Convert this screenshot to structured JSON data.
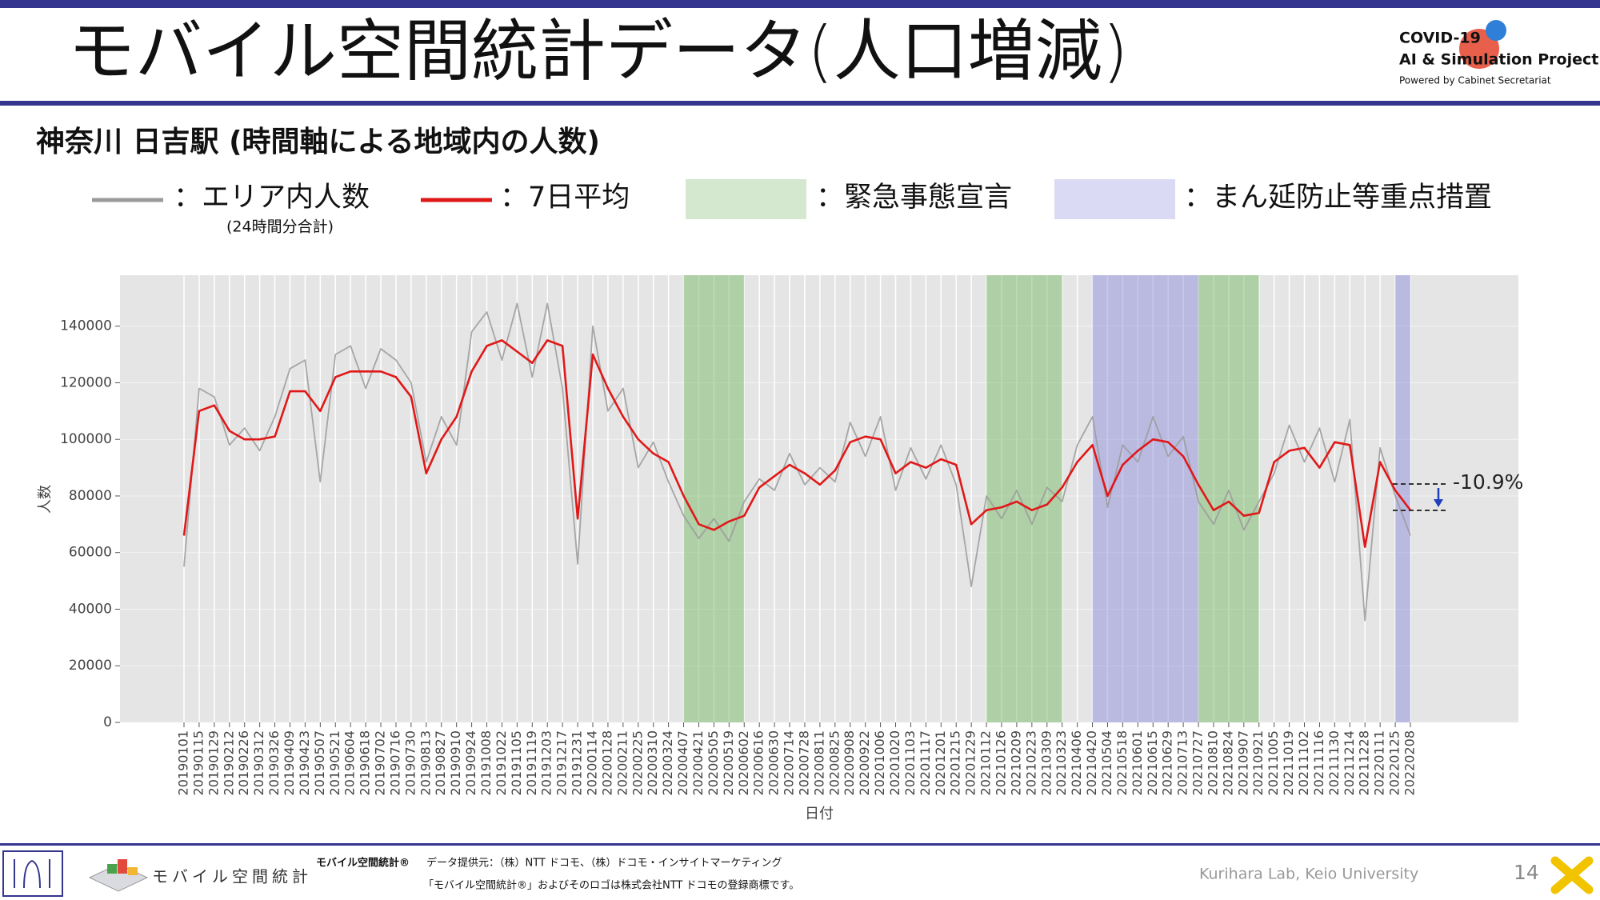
{
  "header": {
    "title": "モバイル空間統計データ(人口増減)",
    "logo_line1": "COVID-19",
    "logo_line2": "AI & Simulation Project",
    "logo_line3": "Powered by Cabinet Secretariat"
  },
  "chart_data": {
    "type": "line",
    "title": "神奈川 日吉駅 (時間軸による地域内の人数)",
    "x_label": "日付",
    "y_label": "人数",
    "x": [
      "20190101",
      "20190115",
      "20190129",
      "20190212",
      "20190226",
      "20190312",
      "20190326",
      "20190409",
      "20190423",
      "20190507",
      "20190521",
      "20190604",
      "20190618",
      "20190702",
      "20190716",
      "20190730",
      "20190813",
      "20190827",
      "20190910",
      "20190924",
      "20191008",
      "20191022",
      "20191105",
      "20191119",
      "20191203",
      "20191217",
      "20191231",
      "20200114",
      "20200128",
      "20200211",
      "20200225",
      "20200310",
      "20200324",
      "20200407",
      "20200421",
      "20200505",
      "20200519",
      "20200602",
      "20200616",
      "20200630",
      "20200714",
      "20200728",
      "20200811",
      "20200825",
      "20200908",
      "20200922",
      "20201006",
      "20201020",
      "20201103",
      "20201117",
      "20201201",
      "20201215",
      "20201229",
      "20210112",
      "20210126",
      "20210209",
      "20210223",
      "20210309",
      "20210323",
      "20210406",
      "20210420",
      "20210504",
      "20210518",
      "20210601",
      "20210615",
      "20210629",
      "20210713",
      "20210727",
      "20210810",
      "20210824",
      "20210907",
      "20210921",
      "20211005",
      "20211019",
      "20211102",
      "20211116",
      "20211130",
      "20211214",
      "20211228",
      "20220111",
      "20220125",
      "20220208"
    ],
    "series": [
      {
        "name": "：エリア内人数",
        "note": "(24時間分合計)",
        "color": "#9a9a9a",
        "values": [
          55000,
          118000,
          115000,
          98000,
          104000,
          96000,
          108000,
          125000,
          128000,
          85000,
          130000,
          133000,
          118000,
          132000,
          128000,
          120000,
          92000,
          108000,
          98000,
          138000,
          145000,
          128000,
          148000,
          122000,
          148000,
          118000,
          56000,
          140000,
          110000,
          118000,
          90000,
          99000,
          85000,
          73000,
          65000,
          72000,
          64000,
          78000,
          86000,
          82000,
          95000,
          84000,
          90000,
          85000,
          106000,
          94000,
          108000,
          82000,
          97000,
          86000,
          98000,
          84000,
          48000,
          80000,
          72000,
          82000,
          70000,
          83000,
          78000,
          98000,
          108000,
          76000,
          98000,
          92000,
          108000,
          94000,
          101000,
          78000,
          70000,
          82000,
          68000,
          78000,
          88000,
          105000,
          92000,
          104000,
          85000,
          107000,
          36000,
          97000,
          80000,
          66000
        ]
      },
      {
        "name": "：7日平均",
        "color": "#e01818",
        "values": [
          66000,
          110000,
          112000,
          103000,
          100000,
          100000,
          101000,
          117000,
          117000,
          110000,
          122000,
          124000,
          124000,
          124000,
          122000,
          115000,
          88000,
          100000,
          108000,
          124000,
          133000,
          135000,
          131000,
          127000,
          135000,
          133000,
          72000,
          130000,
          118000,
          108000,
          100000,
          95000,
          92000,
          80000,
          70000,
          68000,
          71000,
          73000,
          83000,
          87000,
          91000,
          88000,
          84000,
          89000,
          99000,
          101000,
          100000,
          88000,
          92000,
          90000,
          93000,
          91000,
          70000,
          75000,
          76000,
          78000,
          75000,
          77000,
          83000,
          92000,
          98000,
          80000,
          91000,
          96000,
          100000,
          99000,
          94000,
          84000,
          75000,
          78000,
          73000,
          74000,
          92000,
          96000,
          97000,
          90000,
          99000,
          98000,
          62000,
          92000,
          82000,
          75000
        ]
      }
    ],
    "spans": [
      {
        "name": "：緊急事態宣言",
        "color": "#6db35c",
        "ranges": [
          [
            "20200407",
            "20200602"
          ],
          [
            "20210112",
            "20210323"
          ],
          [
            "20210727",
            "20210921"
          ]
        ]
      },
      {
        "name": "：まん延防止等重点措置",
        "color": "#8686dc",
        "ranges": [
          [
            "20210420",
            "20210727"
          ],
          [
            "20220125",
            "20220208"
          ]
        ]
      }
    ],
    "annotation": "-10.9%",
    "ylim": [
      0,
      158000
    ],
    "yticks": [
      0,
      20000,
      40000,
      60000,
      80000,
      100000,
      120000,
      140000
    ],
    "grid": true
  },
  "footer": {
    "logo_text": "モバイル空間統計",
    "brand": "モバイル空間統計®",
    "source": "データ提供元：（株）NTT ドコモ、（株）ドコモ・インサイトマーケティング",
    "trademark": "「モバイル空間統計®」およびそのロゴは株式会社NTT ドコモの登録商標です。",
    "lab": "Kurihara Lab, Keio University",
    "page": "14"
  }
}
